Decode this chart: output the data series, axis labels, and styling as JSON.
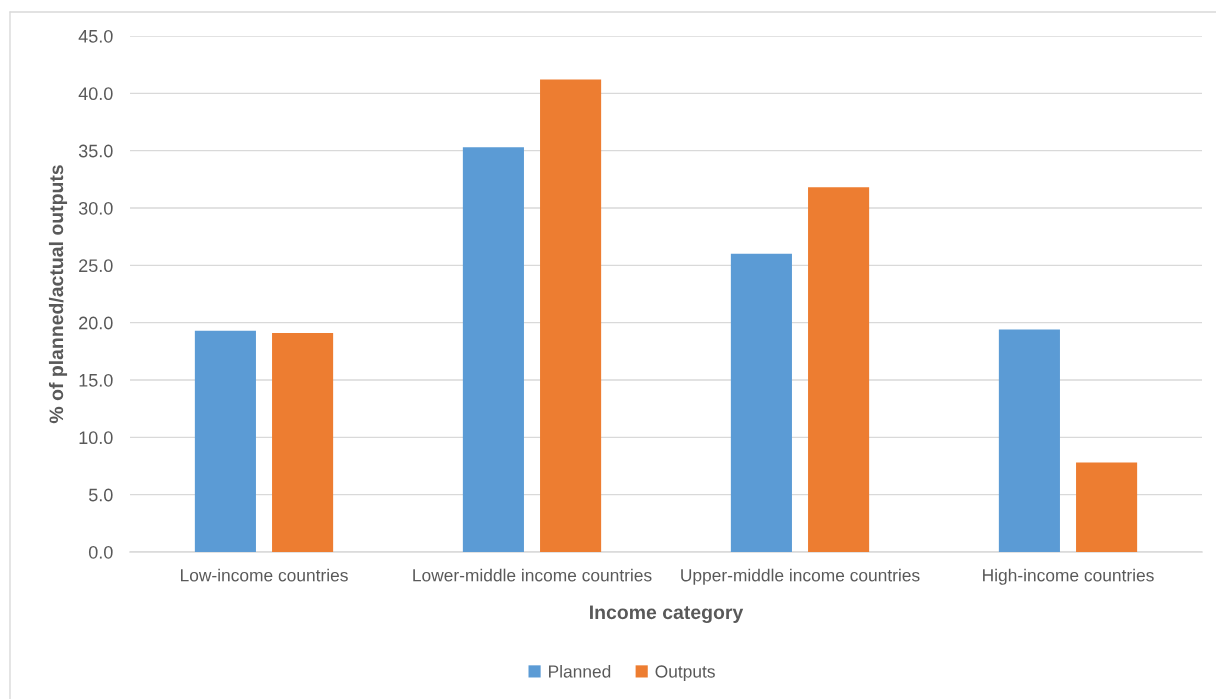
{
  "chart_data": {
    "type": "bar",
    "xlabel": "Income category",
    "ylabel": "% of planned/actual outputs",
    "categories": [
      "Low-income countries",
      "Lower-middle income countries",
      "Upper-middle income countries",
      "High-income countries"
    ],
    "series": [
      {
        "name": "Planned",
        "color": "#5b9bd5",
        "values": [
          19.3,
          35.3,
          26.0,
          19.4
        ]
      },
      {
        "name": "Outputs",
        "color": "#ed7d31",
        "values": [
          19.1,
          41.2,
          31.8,
          7.8
        ]
      }
    ],
    "ylim": [
      0,
      45
    ],
    "yticks": [
      {
        "value": 0,
        "label": "0.0"
      },
      {
        "value": 5,
        "label": "5.0"
      },
      {
        "value": 10,
        "label": "10.0"
      },
      {
        "value": 15,
        "label": "15.0"
      },
      {
        "value": 20,
        "label": "20.0"
      },
      {
        "value": 25,
        "label": "25.0"
      },
      {
        "value": 30,
        "label": "30.0"
      },
      {
        "value": 35,
        "label": "35.0"
      },
      {
        "value": 40,
        "label": "40.0"
      },
      {
        "value": 45,
        "label": "45.0"
      }
    ],
    "grid": "y",
    "legend": "bottom"
  }
}
